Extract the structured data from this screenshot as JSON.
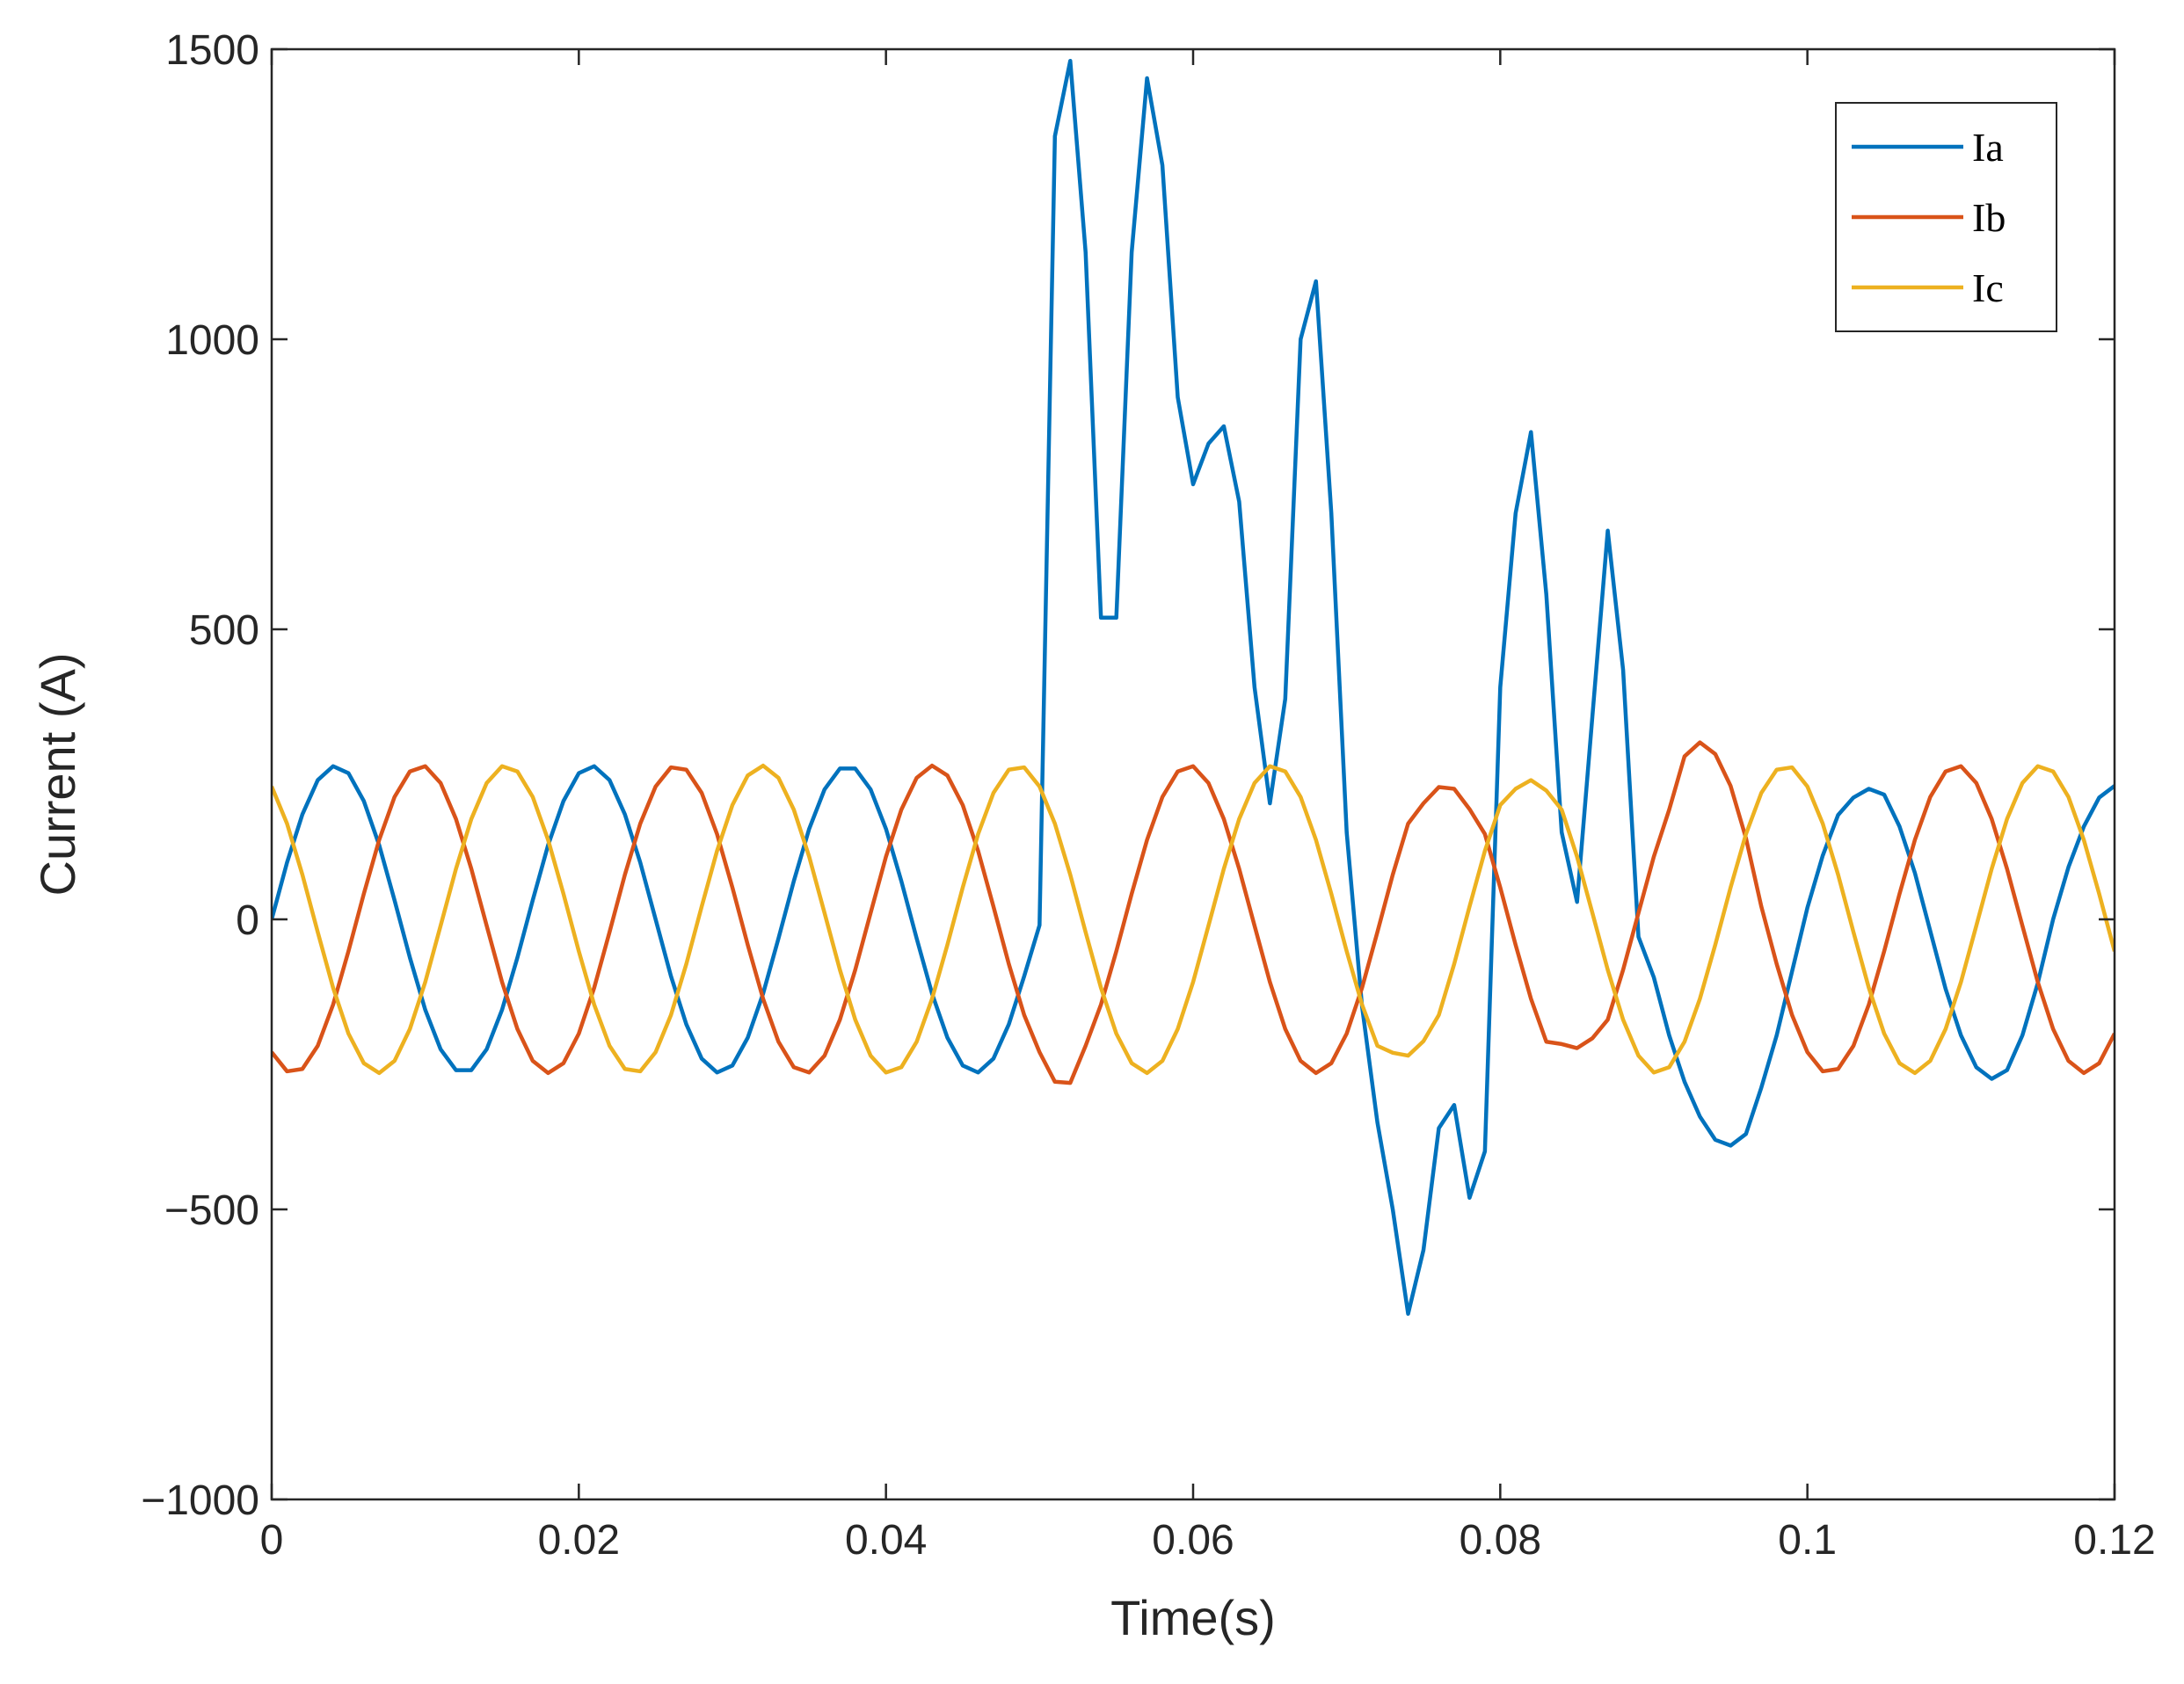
{
  "chart_data": {
    "type": "line",
    "xlabel": "Time(s)",
    "ylabel": "Current (A)",
    "xlim": [
      0,
      0.12
    ],
    "ylim": [
      -1000,
      1500
    ],
    "xticks": [
      0,
      0.02,
      0.04,
      0.06,
      0.08,
      0.1,
      0.12
    ],
    "yticks": [
      {
        "value": -1000,
        "label": "−1000"
      },
      {
        "value": -500,
        "label": "−500"
      },
      0,
      500,
      1000,
      1500
    ],
    "grid": false,
    "legend": "upper right",
    "x": [
      0,
      0.001,
      0.002,
      0.003,
      0.004,
      0.005,
      0.006,
      0.007,
      0.008,
      0.009,
      0.01,
      0.011,
      0.012,
      0.013,
      0.014,
      0.015,
      0.016,
      0.017,
      0.018,
      0.019,
      0.02,
      0.021,
      0.022,
      0.023,
      0.024,
      0.025,
      0.026,
      0.027,
      0.028,
      0.029,
      0.03,
      0.031,
      0.032,
      0.033,
      0.034,
      0.035,
      0.036,
      0.037,
      0.038,
      0.039,
      0.04,
      0.041,
      0.042,
      0.043,
      0.044,
      0.045,
      0.046,
      0.047,
      0.048,
      0.049,
      0.05,
      0.051,
      0.052,
      0.053,
      0.054,
      0.055,
      0.056,
      0.057,
      0.058,
      0.059,
      0.06,
      0.061,
      0.062,
      0.063,
      0.064,
      0.065,
      0.066,
      0.067,
      0.068,
      0.069,
      0.07,
      0.071,
      0.072,
      0.073,
      0.074,
      0.075,
      0.076,
      0.077,
      0.078,
      0.079,
      0.08,
      0.081,
      0.082,
      0.083,
      0.084,
      0.085,
      0.086,
      0.087,
      0.088,
      0.089,
      0.09,
      0.091,
      0.092,
      0.093,
      0.094,
      0.095,
      0.096,
      0.097,
      0.098,
      0.099,
      0.1,
      0.101,
      0.102,
      0.103,
      0.104,
      0.105,
      0.106,
      0.107,
      0.108,
      0.109,
      0.11,
      0.111,
      0.112,
      0.113,
      0.114,
      0.115,
      0.116,
      0.117,
      0.118,
      0.119,
      0.12
    ],
    "series": [
      {
        "name": "Ia",
        "color": "#0072BD",
        "values": [
          0,
          98,
          181,
          240,
          264,
          252,
          204,
          128,
          33,
          -66,
          -156,
          -224,
          -260,
          -260,
          -224,
          -156,
          -66,
          33,
          128,
          204,
          252,
          264,
          240,
          181,
          98,
          0,
          -98,
          -181,
          -240,
          -264,
          -252,
          -204,
          -128,
          -33,
          66,
          156,
          224,
          260,
          260,
          224,
          156,
          66,
          -33,
          -128,
          -204,
          -252,
          -264,
          -240,
          -181,
          -98,
          -10,
          1350,
          1480,
          1150,
          520,
          520,
          1150,
          1450,
          1300,
          900,
          750,
          820,
          850,
          720,
          400,
          200,
          380,
          1000,
          1100,
          700,
          150,
          -150,
          -350,
          -500,
          -680,
          -570,
          -360,
          -320,
          -480,
          -400,
          400,
          700,
          840,
          560,
          150,
          30,
          350,
          670,
          430,
          -30,
          -100,
          -200,
          -280,
          -340,
          -380,
          -390,
          -370,
          -290,
          -200,
          -90,
          20,
          110,
          180,
          210,
          225,
          215,
          160,
          80,
          -20,
          -120,
          -200,
          -255,
          -275,
          -260,
          -200,
          -110,
          0,
          90,
          160,
          210,
          230
        ]
      },
      {
        "name": "Ib",
        "color": "#D95319",
        "values": [
          -229,
          -262,
          -258,
          -218,
          -147,
          -55,
          44,
          137,
          211,
          255,
          264,
          235,
          173,
          87,
          -11,
          -108,
          -189,
          -244,
          -265,
          -248,
          -197,
          -118,
          -22,
          77,
          165,
          229,
          262,
          258,
          218,
          147,
          55,
          -44,
          -137,
          -211,
          -255,
          -264,
          -235,
          -173,
          -87,
          11,
          108,
          189,
          244,
          265,
          248,
          197,
          118,
          22,
          -77,
          -165,
          -229,
          -280,
          -282,
          -218,
          -147,
          -55,
          44,
          137,
          211,
          255,
          264,
          235,
          173,
          87,
          -11,
          -108,
          -189,
          -244,
          -265,
          -248,
          -197,
          -118,
          -22,
          77,
          165,
          200,
          228,
          225,
          190,
          147,
          55,
          -44,
          -137,
          -211,
          -215,
          -222,
          -205,
          -173,
          -87,
          11,
          108,
          189,
          281,
          305,
          285,
          230,
          140,
          22,
          -77,
          -165,
          -229,
          -262,
          -258,
          -218,
          -147,
          -55,
          44,
          137,
          211,
          255,
          264,
          235,
          173,
          87,
          -11,
          -108,
          -189,
          -244,
          -265,
          -248,
          -197
        ]
      },
      {
        "name": "Ic",
        "color": "#EDB120",
        "values": [
          229,
          165,
          77,
          -22,
          -118,
          -197,
          -248,
          -265,
          -244,
          -189,
          -108,
          -11,
          87,
          173,
          235,
          264,
          255,
          211,
          137,
          44,
          -55,
          -147,
          -218,
          -258,
          -262,
          -229,
          -165,
          -77,
          22,
          118,
          197,
          248,
          265,
          244,
          189,
          108,
          11,
          -87,
          -173,
          -235,
          -264,
          -255,
          -211,
          -137,
          -44,
          55,
          147,
          218,
          258,
          262,
          229,
          165,
          77,
          -22,
          -118,
          -197,
          -248,
          -265,
          -244,
          -189,
          -108,
          -11,
          87,
          173,
          235,
          264,
          255,
          211,
          137,
          44,
          -55,
          -147,
          -218,
          -230,
          -235,
          -210,
          -165,
          -77,
          22,
          118,
          197,
          225,
          240,
          222,
          189,
          108,
          11,
          -87,
          -173,
          -235,
          -264,
          -255,
          -211,
          -137,
          -44,
          55,
          147,
          218,
          258,
          262,
          229,
          165,
          77,
          -22,
          -118,
          -197,
          -248,
          -265,
          -244,
          -189,
          -108,
          -11,
          87,
          173,
          235,
          264,
          255,
          211,
          137,
          44,
          -55
        ]
      }
    ]
  }
}
